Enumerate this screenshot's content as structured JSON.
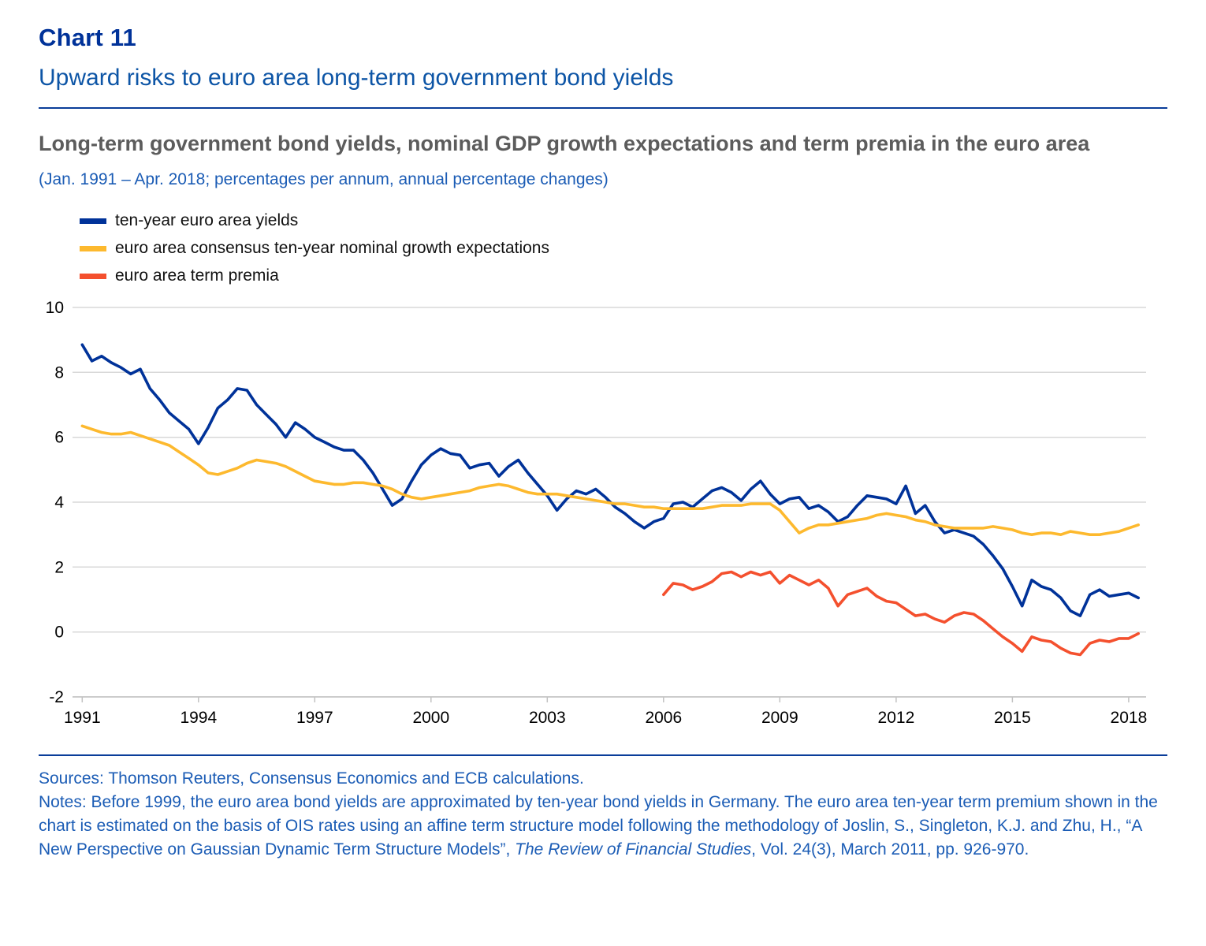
{
  "header": {
    "chart_label": "Chart 11",
    "title": "Upward risks to euro area long-term government bond yields"
  },
  "subtitle": "Long-term government bond yields, nominal GDP growth expectations and term premia in the euro area",
  "axis_note": "(Jan. 1991 – Apr. 2018; percentages per annum, annual percentage changes)",
  "legend": [
    {
      "label": "ten-year euro area yields",
      "color": "#003299"
    },
    {
      "label": "euro area consensus ten-year nominal growth expectations",
      "color": "#FDB92E"
    },
    {
      "label": "euro area term premia",
      "color": "#F4502E"
    }
  ],
  "chart_data": {
    "type": "line",
    "title": "Long-term government bond yields, nominal GDP growth expectations and term premia in the euro area",
    "period": "Jan. 1991 – Apr. 2018",
    "units": "percentages per annum, annual percentage changes",
    "grid": true,
    "legend_position": "top-left",
    "ylim": [
      -2,
      10
    ],
    "yticks": [
      10,
      8,
      6,
      4,
      2,
      0,
      -2
    ],
    "xticks": [
      1991,
      1994,
      1997,
      2000,
      2003,
      2006,
      2009,
      2012,
      2015,
      2018
    ],
    "x_range": [
      1990.75,
      2018.45
    ],
    "series": [
      {
        "name": "ten-year euro area yields",
        "color": "#003299",
        "x_start": 1991.0,
        "x_step": 0.25,
        "values": [
          8.85,
          8.35,
          8.5,
          8.3,
          8.15,
          7.95,
          8.1,
          7.5,
          7.15,
          6.75,
          6.5,
          6.25,
          5.8,
          6.3,
          6.9,
          7.15,
          7.5,
          7.45,
          7.0,
          6.7,
          6.4,
          6.0,
          6.45,
          6.25,
          6.0,
          5.85,
          5.7,
          5.6,
          5.6,
          5.3,
          4.9,
          4.4,
          3.9,
          4.1,
          4.65,
          5.15,
          5.45,
          5.65,
          5.5,
          5.45,
          5.05,
          5.15,
          5.2,
          4.8,
          5.1,
          5.3,
          4.9,
          4.55,
          4.2,
          3.75,
          4.1,
          4.35,
          4.25,
          4.4,
          4.15,
          3.85,
          3.65,
          3.4,
          3.2,
          3.4,
          3.5,
          3.95,
          4.0,
          3.85,
          4.1,
          4.35,
          4.45,
          4.3,
          4.05,
          4.4,
          4.65,
          4.25,
          3.95,
          4.1,
          4.15,
          3.8,
          3.9,
          3.7,
          3.4,
          3.55,
          3.9,
          4.2,
          4.15,
          4.1,
          3.95,
          4.5,
          3.65,
          3.9,
          3.4,
          3.05,
          3.15,
          3.05,
          2.95,
          2.7,
          2.35,
          1.95,
          1.4,
          0.8,
          1.6,
          1.4,
          1.3,
          1.05,
          0.65,
          0.5,
          1.15,
          1.3,
          1.1,
          1.15,
          1.2,
          1.05
        ]
      },
      {
        "name": "euro area consensus ten-year nominal growth expectations",
        "color": "#FDB92E",
        "x_start": 1991.0,
        "x_step": 0.25,
        "values": [
          6.35,
          6.25,
          6.15,
          6.1,
          6.1,
          6.15,
          6.05,
          5.95,
          5.85,
          5.75,
          5.55,
          5.35,
          5.15,
          4.9,
          4.85,
          4.95,
          5.05,
          5.2,
          5.3,
          5.25,
          5.2,
          5.1,
          4.95,
          4.8,
          4.65,
          4.6,
          4.55,
          4.55,
          4.6,
          4.6,
          4.55,
          4.5,
          4.4,
          4.25,
          4.15,
          4.1,
          4.15,
          4.2,
          4.25,
          4.3,
          4.35,
          4.45,
          4.5,
          4.55,
          4.5,
          4.4,
          4.3,
          4.25,
          4.25,
          4.25,
          4.2,
          4.15,
          4.1,
          4.05,
          4.0,
          3.95,
          3.95,
          3.9,
          3.85,
          3.85,
          3.8,
          3.8,
          3.8,
          3.8,
          3.8,
          3.85,
          3.9,
          3.9,
          3.9,
          3.95,
          3.95,
          3.95,
          3.75,
          3.4,
          3.05,
          3.2,
          3.3,
          3.3,
          3.35,
          3.4,
          3.45,
          3.5,
          3.6,
          3.65,
          3.6,
          3.55,
          3.45,
          3.4,
          3.3,
          3.25,
          3.2,
          3.2,
          3.2,
          3.2,
          3.25,
          3.2,
          3.15,
          3.05,
          3.0,
          3.05,
          3.05,
          3.0,
          3.1,
          3.05,
          3.0,
          3.0,
          3.05,
          3.1,
          3.2,
          3.3
        ]
      },
      {
        "name": "euro area term premia",
        "color": "#F4502E",
        "x_start": 2006.0,
        "x_step": 0.25,
        "values": [
          1.15,
          1.5,
          1.45,
          1.3,
          1.4,
          1.55,
          1.8,
          1.85,
          1.7,
          1.85,
          1.75,
          1.85,
          1.5,
          1.75,
          1.6,
          1.45,
          1.6,
          1.35,
          0.8,
          1.15,
          1.25,
          1.35,
          1.1,
          0.95,
          0.9,
          0.7,
          0.5,
          0.55,
          0.4,
          0.3,
          0.5,
          0.6,
          0.55,
          0.35,
          0.1,
          -0.15,
          -0.35,
          -0.6,
          -0.15,
          -0.25,
          -0.3,
          -0.5,
          -0.65,
          -0.7,
          -0.35,
          -0.25,
          -0.3,
          -0.2,
          -0.2,
          -0.05
        ]
      }
    ]
  },
  "footer": {
    "sources": "Sources: Thomson Reuters, Consensus Economics and ECB calculations.",
    "notes_part1": "Notes: Before 1999, the euro area bond yields are approximated by ten-year bond yields in Germany. The euro area ten-year term premium shown in the chart is estimated on the basis of OIS rates using an affine term structure model following the methodology of Joslin, S., Singleton, K.J. and Zhu, H., “A New Perspective on Gaussian Dynamic Term Structure Models”, ",
    "notes_italic": "The Review of Financial Studies",
    "notes_part2": ", Vol. 24(3), March 2011, pp. 926-970."
  }
}
